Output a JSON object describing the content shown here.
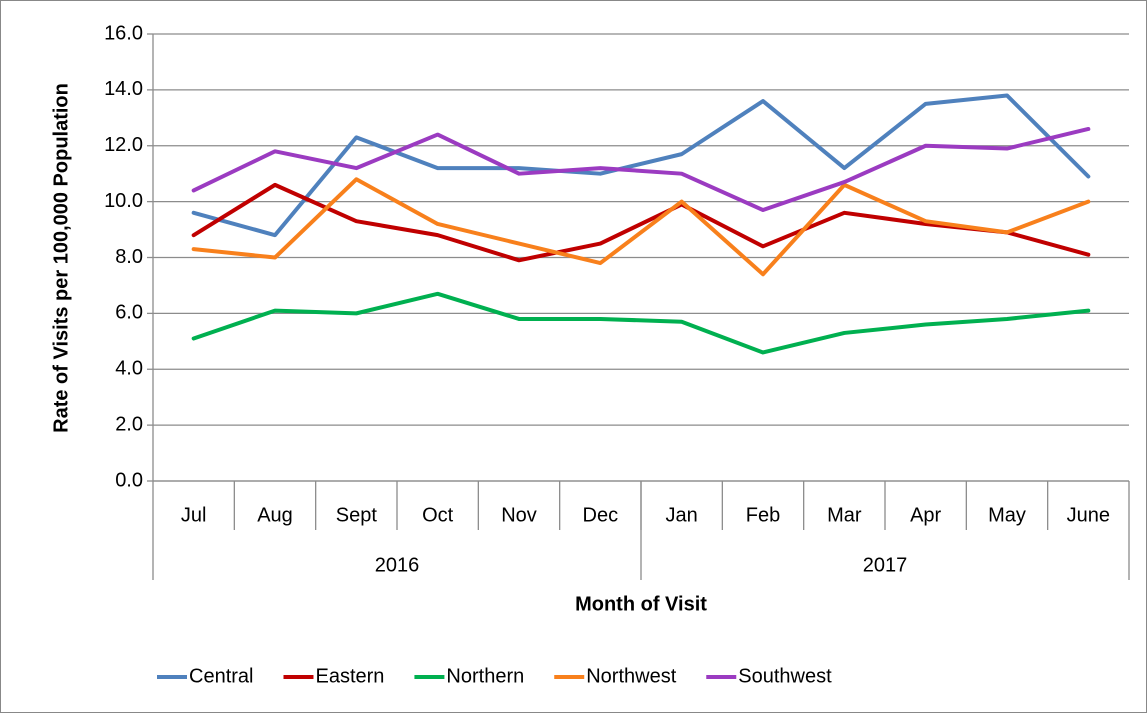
{
  "chart_data": {
    "type": "line",
    "y_label": "Rate of Visits per 100,000 Population",
    "x_label": "Month of Visit",
    "categories": [
      "Jul",
      "Aug",
      "Sept",
      "Oct",
      "Nov",
      "Dec",
      "Jan",
      "Feb",
      "Mar",
      "Apr",
      "May",
      "June"
    ],
    "x_groups": [
      "2016",
      "2017"
    ],
    "ylim": [
      0,
      16
    ],
    "yticks": [
      {
        "value": 0,
        "label": "0.0"
      },
      {
        "value": 2,
        "label": "2.0"
      },
      {
        "value": 4,
        "label": "4.0"
      },
      {
        "value": 6,
        "label": "6.0"
      },
      {
        "value": 8,
        "label": "8.0"
      },
      {
        "value": 10,
        "label": "10.0"
      },
      {
        "value": 12,
        "label": "12.0"
      },
      {
        "value": 14,
        "label": "14.0"
      },
      {
        "value": 16,
        "label": "16.0"
      }
    ],
    "grid": true,
    "legend": "bottom",
    "series": [
      {
        "name": "Central",
        "color": "#4f81bd",
        "values": [
          9.6,
          8.8,
          12.3,
          11.2,
          11.2,
          11.0,
          11.7,
          13.6,
          11.2,
          13.5,
          13.8,
          10.9
        ]
      },
      {
        "name": "Eastern",
        "color": "#c00000",
        "values": [
          8.8,
          10.6,
          9.3,
          8.8,
          7.9,
          8.5,
          9.9,
          8.4,
          9.6,
          9.2,
          8.9,
          8.1
        ]
      },
      {
        "name": "Northern",
        "color": "#00b050",
        "values": [
          5.1,
          6.1,
          6.0,
          6.7,
          5.8,
          5.8,
          5.7,
          4.6,
          5.3,
          5.6,
          5.8,
          6.1
        ]
      },
      {
        "name": "Northwest",
        "color": "#f8801c",
        "values": [
          8.3,
          8.0,
          10.8,
          9.2,
          8.5,
          7.8,
          10.0,
          7.4,
          10.6,
          9.3,
          8.9,
          10.0
        ]
      },
      {
        "name": "Southwest",
        "color": "#9b3bc1",
        "values": [
          10.4,
          11.8,
          11.2,
          12.4,
          11.0,
          11.2,
          11.0,
          9.7,
          10.7,
          12.0,
          11.9,
          12.6
        ]
      }
    ]
  }
}
